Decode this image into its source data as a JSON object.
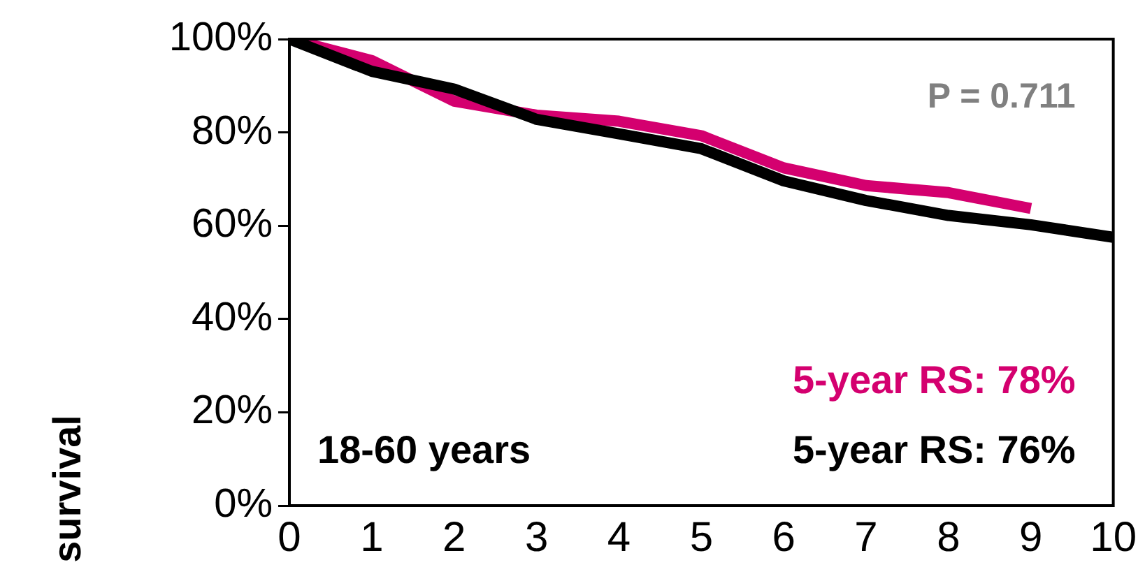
{
  "chart_data": {
    "type": "line",
    "ylabel": "survival",
    "x": [
      0,
      1,
      2,
      3,
      4,
      5,
      6,
      7,
      8,
      9,
      10
    ],
    "series": [
      {
        "color": "#d4006f",
        "x": [
          0,
          1,
          2,
          3,
          4,
          5,
          6,
          7,
          8,
          9
        ],
        "values": [
          100,
          95.4,
          86.7,
          83.7,
          82.4,
          79.3,
          72.4,
          68.6,
          67.1,
          63.7
        ]
      },
      {
        "color": "#000000",
        "values": [
          100,
          93.1,
          89.3,
          82.8,
          79.7,
          76.5,
          69.6,
          65.4,
          62.2,
          60.2,
          57.5
        ]
      }
    ],
    "xlim": [
      0,
      10
    ],
    "xticks": [
      0,
      1,
      2,
      3,
      4,
      5,
      6,
      7,
      8,
      9,
      10
    ],
    "ylim": [
      0,
      100
    ],
    "yticks": [
      {
        "value": 0,
        "label": "0%"
      },
      {
        "value": 20,
        "label": "20%"
      },
      {
        "value": 40,
        "label": "40%"
      },
      {
        "value": 60,
        "label": "60%"
      },
      {
        "value": 80,
        "label": "80%"
      },
      {
        "value": 100,
        "label": "100%"
      }
    ],
    "grid": false,
    "legend": false,
    "marker": "none",
    "line_style": "solid",
    "annotations": [
      "P = 0.711",
      "5-year RS: 78%",
      "5-year RS: 76%",
      "18-60 years"
    ]
  }
}
